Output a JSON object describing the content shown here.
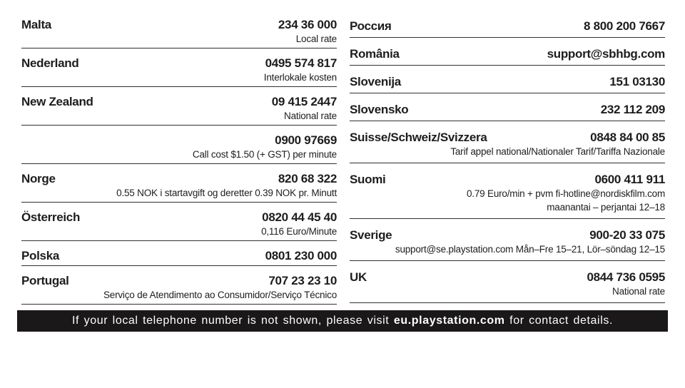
{
  "page": {
    "title": "Customer support telephone numbers",
    "colors": {
      "background": "#ffffff",
      "text": "#1d1d1b",
      "divider": "#332f30",
      "banner_background": "#1a1818",
      "banner_text": "#ffffff"
    }
  },
  "columns": {
    "left": {
      "rows": [
        {
          "country": "Malta",
          "contact": "234 36 000",
          "notes": [
            "Local rate"
          ]
        },
        {
          "country": "Nederland",
          "contact": "0495 574 817",
          "notes": [
            "Interlokale kosten"
          ]
        },
        {
          "country": "New Zealand",
          "contact": "09 415 2447",
          "notes": [
            "National rate"
          ]
        },
        {
          "country": "",
          "contact": "0900 97669",
          "notes": [
            "Call cost $1.50 (+ GST) per minute"
          ]
        },
        {
          "country": "Norge",
          "contact": "820 68 322",
          "notes": [
            "0.55 NOK i startavgift og deretter 0.39 NOK pr. Minutt"
          ]
        },
        {
          "country": "Österreich",
          "contact": "0820 44 45 40",
          "notes": [
            "0,116 Euro/Minute"
          ]
        },
        {
          "country": "Polska",
          "contact": "0801 230 000",
          "notes": []
        },
        {
          "country": "Portugal",
          "contact": "707 23 23 10",
          "notes": [
            "Serviço de Atendimento ao Consumidor/Serviço Técnico"
          ]
        }
      ]
    },
    "right": {
      "rows": [
        {
          "country": "Россия",
          "contact": "8 800 200 7667",
          "notes": []
        },
        {
          "country": "România",
          "contact": "support@sbhbg.com",
          "notes": []
        },
        {
          "country": "Slovenija",
          "contact": "151 03130",
          "notes": []
        },
        {
          "country": "Slovensko",
          "contact": "232 112 209",
          "notes": []
        },
        {
          "country": "Suisse/Schweiz/Svizzera",
          "contact": "0848 84 00 85",
          "notes": [
            "Tarif appel national/Nationaler Tarif/Tariffa Nazionale"
          ]
        },
        {
          "country": "Suomi",
          "contact": "0600 411 911",
          "notes": [
            "0.79 Euro/min + pvm fi-hotline@nordiskfilm.com",
            "maanantai – perjantai 12–18"
          ]
        },
        {
          "country": "Sverige",
          "contact": "900-20 33 075",
          "notes": [
            "support@se.playstation.com Mån–Fre 15–21, Lör–söndag 12–15"
          ]
        },
        {
          "country": "UK",
          "contact": "0844 736 0595",
          "notes": [
            "National rate"
          ]
        }
      ]
    }
  },
  "banner": {
    "prefix": "If your local telephone number is not shown, please visit ",
    "highlight": "eu.playstation.com",
    "suffix": " for contact details."
  }
}
